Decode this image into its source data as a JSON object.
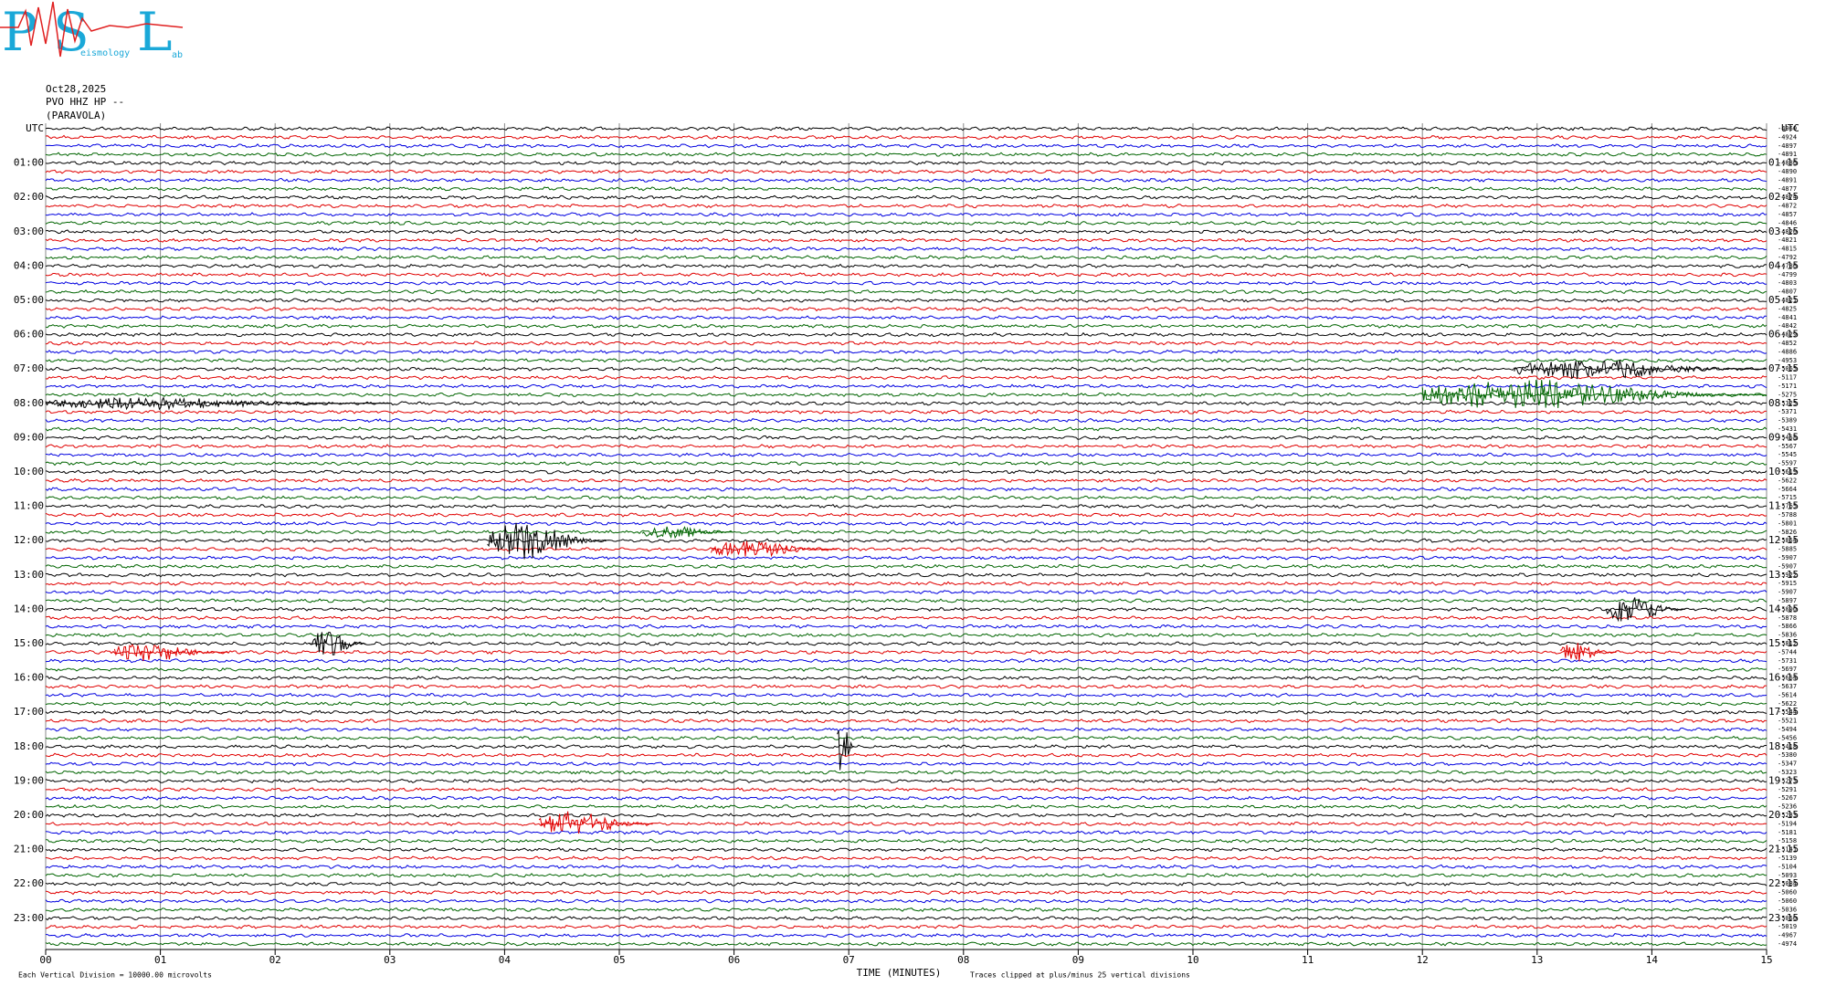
{
  "logo": {
    "letters": [
      "P",
      "S",
      "L"
    ],
    "words": [
      "eismology",
      "ab"
    ]
  },
  "chart_data": {
    "type": "helicorder",
    "header": [
      "Oct28,2025",
      "PVO HHZ HP --",
      "(PARAVOLA)"
    ],
    "colors": [
      "#000000",
      "#e00000",
      "#0000e0",
      "#006400"
    ],
    "left_labels": [
      "UTC",
      "01:00",
      "02:00",
      "03:00",
      "04:00",
      "05:00",
      "06:00",
      "07:00",
      "08:00",
      "09:00",
      "10:00",
      "11:00",
      "12:00",
      "13:00",
      "14:00",
      "15:00",
      "16:00",
      "17:00",
      "18:00",
      "19:00",
      "20:00",
      "21:00",
      "22:00",
      "23:00"
    ],
    "right_labels": [
      "UTC",
      "01:15",
      "02:15",
      "03:15",
      "04:15",
      "05:15",
      "06:15",
      "07:15",
      "08:15",
      "09:15",
      "10:15",
      "11:15",
      "12:15",
      "13:15",
      "14:15",
      "15:15",
      "16:15",
      "17:15",
      "18:15",
      "19:15",
      "20:15",
      "21:15",
      "22:15",
      "23:15"
    ],
    "offsets": [
      -4960,
      -4924,
      -4897,
      -4891,
      -4886,
      -4890,
      -4891,
      -4877,
      -4874,
      -4872,
      -4857,
      -4846,
      -4820,
      -4821,
      -4815,
      -4792,
      -4786,
      -4799,
      -4803,
      -4807,
      -4821,
      -4825,
      -4841,
      -4842,
      -4829,
      -4852,
      -4886,
      -4953,
      -5065,
      -5117,
      -5171,
      -5275,
      -5325,
      -5371,
      -5389,
      -5431,
      -5458,
      -5567,
      -5545,
      -5597,
      -5619,
      -5622,
      -5664,
      -5715,
      -5765,
      -5788,
      -5801,
      -5826,
      -5854,
      -5885,
      -5907,
      -5907,
      -5922,
      -5915,
      -5907,
      -5897,
      -5890,
      -5878,
      -5866,
      -5836,
      -5812,
      -5744,
      -5731,
      -5697,
      -5664,
      -5637,
      -5614,
      -5622,
      -5544,
      -5521,
      -5494,
      -5456,
      -5418,
      -5380,
      -5347,
      -5323,
      -5273,
      -5291,
      -5267,
      -5236,
      -5233,
      -5194,
      -5181,
      -5158,
      -5141,
      -5139,
      -5104,
      -5093,
      -5084,
      -5060,
      -5060,
      -5036,
      -5050,
      -5019,
      -4967,
      -4974
    ],
    "events": [
      {
        "row": 48,
        "start": 3.85,
        "end": 4.9,
        "amp": 2.2
      },
      {
        "row": 47,
        "start": 5.2,
        "end": 6.0,
        "amp": 0.8
      },
      {
        "row": 49,
        "start": 5.8,
        "end": 6.9,
        "amp": 1.0
      },
      {
        "row": 56,
        "start": 13.6,
        "end": 14.3,
        "amp": 1.6
      },
      {
        "row": 60,
        "start": 2.3,
        "end": 2.8,
        "amp": 1.6
      },
      {
        "row": 61,
        "start": 0.6,
        "end": 1.6,
        "amp": 1.1
      },
      {
        "row": 61,
        "start": 13.2,
        "end": 13.7,
        "amp": 1.1
      },
      {
        "row": 81,
        "start": 4.3,
        "end": 5.3,
        "amp": 1.5
      },
      {
        "row": 31,
        "start": 12.0,
        "end": 15.0,
        "amp": 1.8
      },
      {
        "row": 28,
        "start": 12.8,
        "end": 15.0,
        "amp": 1.2
      },
      {
        "row": 32,
        "start": 0.0,
        "end": 3.0,
        "amp": 0.7
      },
      {
        "row": 72,
        "start": 6.9,
        "end": 7.05,
        "amp": 4.0
      }
    ],
    "xlim": [
      0,
      15
    ],
    "xticks": [
      {
        "value": 0,
        "label": "00"
      },
      {
        "value": 1,
        "label": "01"
      },
      {
        "value": 2,
        "label": "02"
      },
      {
        "value": 3,
        "label": "03"
      },
      {
        "value": 4,
        "label": "04"
      },
      {
        "value": 5,
        "label": "05"
      },
      {
        "value": 6,
        "label": "06"
      },
      {
        "value": 7,
        "label": "07"
      },
      {
        "value": 8,
        "label": "08"
      },
      {
        "value": 9,
        "label": "09"
      },
      {
        "value": 10,
        "label": "10"
      },
      {
        "value": 11,
        "label": "11"
      },
      {
        "value": 12,
        "label": "12"
      },
      {
        "value": 13,
        "label": "13"
      },
      {
        "value": 14,
        "label": "14"
      },
      {
        "value": 15,
        "label": "15"
      }
    ],
    "xlabel": "TIME (MINUTES)",
    "footer_left": "Each Vertical Division = 10000.00 microvolts",
    "footer_right": "Traces clipped at plus/minus 25 vertical divisions"
  }
}
